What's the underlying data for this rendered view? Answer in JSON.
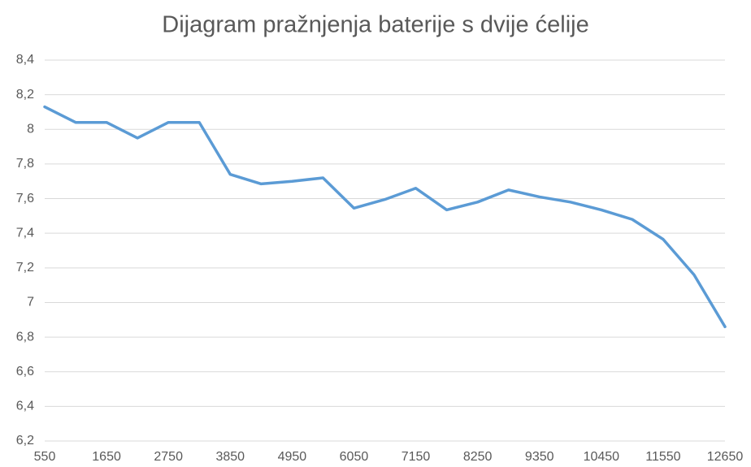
{
  "chart_data": {
    "type": "line",
    "title": "Dijagram pražnjenja baterije s dvije ćelije",
    "categories": [
      "550",
      null,
      "1650",
      null,
      "2750",
      null,
      "3850",
      null,
      "4950",
      null,
      "6050",
      null,
      "7150",
      null,
      "8250",
      null,
      "9350",
      null,
      "10450",
      null,
      "11550",
      null,
      "12650"
    ],
    "series": [
      {
        "color": "#5b9bd5",
        "values": [
          8.13,
          8.04,
          8.04,
          7.95,
          8.04,
          8.04,
          7.74,
          7.685,
          7.7,
          7.72,
          7.545,
          7.595,
          7.66,
          7.535,
          7.58,
          7.65,
          7.61,
          7.58,
          7.535,
          7.48,
          7.365,
          7.16,
          6.86
        ]
      }
    ],
    "ylim": [
      6.2,
      8.4
    ],
    "yticks": [
      {
        "value": 6.2,
        "label": "6,2"
      },
      {
        "value": 6.4,
        "label": "6,4"
      },
      {
        "value": 6.6,
        "label": "6,6"
      },
      {
        "value": 6.8,
        "label": "6,8"
      },
      7,
      {
        "value": 7.2,
        "label": "7,2"
      },
      {
        "value": 7.4,
        "label": "7,4"
      },
      {
        "value": 7.6,
        "label": "7,6"
      },
      {
        "value": 7.8,
        "label": "7,8"
      },
      8,
      {
        "value": 8.2,
        "label": "8,2"
      },
      {
        "value": 8.4,
        "label": "8,4"
      }
    ],
    "grid": true
  }
}
